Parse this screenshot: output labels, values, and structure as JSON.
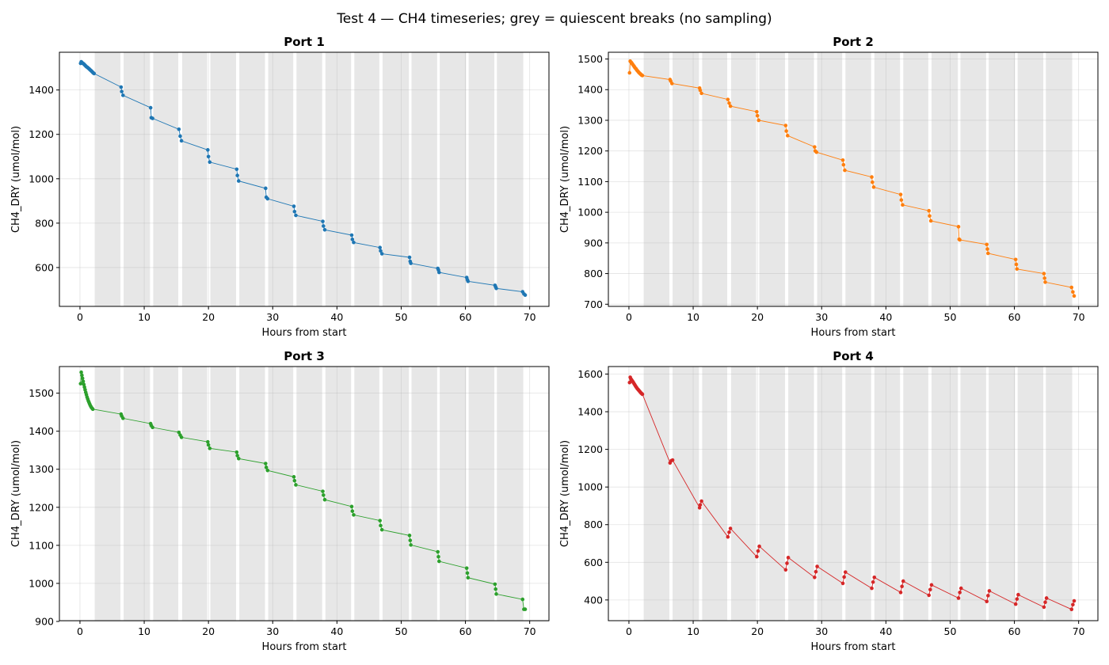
{
  "figure_title": "Test 4 — CH4 timeseries; grey = quiescent breaks (no sampling)",
  "chart_data": [
    {
      "type": "line",
      "title": "Port 1",
      "xlabel": "Hours from start",
      "ylabel": "CH4_DRY (umol/mol)",
      "xlim": [
        -3.2,
        73
      ],
      "ylim": [
        425,
        1570
      ],
      "xticks": [
        0,
        10,
        20,
        30,
        40,
        50,
        60,
        70
      ],
      "yticks": [
        600,
        800,
        1000,
        1200,
        1400
      ],
      "color": "#1f77b4",
      "grid": true,
      "points": [
        [
          0.1,
          1520
        ],
        [
          0.2,
          1527
        ],
        [
          0.3,
          1524
        ],
        [
          0.4,
          1521
        ],
        [
          0.5,
          1519
        ],
        [
          0.6,
          1517
        ],
        [
          0.7,
          1514
        ],
        [
          0.8,
          1511
        ],
        [
          0.9,
          1508
        ],
        [
          1.0,
          1505
        ],
        [
          1.1,
          1503
        ],
        [
          1.2,
          1501
        ],
        [
          1.3,
          1498
        ],
        [
          1.4,
          1496
        ],
        [
          1.5,
          1493
        ],
        [
          1.6,
          1490
        ],
        [
          1.7,
          1488
        ],
        [
          1.8,
          1485
        ],
        [
          1.9,
          1482
        ],
        [
          2.0,
          1479
        ],
        [
          2.1,
          1476
        ],
        [
          2.2,
          1474
        ],
        [
          6.4,
          1413
        ],
        [
          6.5,
          1393
        ],
        [
          6.7,
          1376
        ],
        [
          11.0,
          1320
        ],
        [
          11.1,
          1275
        ],
        [
          11.3,
          1272
        ],
        [
          15.4,
          1223
        ],
        [
          15.6,
          1192
        ],
        [
          15.8,
          1171
        ],
        [
          19.9,
          1130
        ],
        [
          20.0,
          1100
        ],
        [
          20.2,
          1075
        ],
        [
          24.4,
          1043
        ],
        [
          24.5,
          1015
        ],
        [
          24.7,
          990
        ],
        [
          28.9,
          957
        ],
        [
          29.0,
          917
        ],
        [
          29.2,
          910
        ],
        [
          33.3,
          876
        ],
        [
          33.4,
          852
        ],
        [
          33.6,
          835
        ],
        [
          37.8,
          808
        ],
        [
          37.9,
          787
        ],
        [
          38.1,
          770
        ],
        [
          42.3,
          746
        ],
        [
          42.4,
          727
        ],
        [
          42.6,
          713
        ],
        [
          46.7,
          690
        ],
        [
          46.8,
          675
        ],
        [
          47.0,
          662
        ],
        [
          51.3,
          646
        ],
        [
          51.4,
          628
        ],
        [
          51.5,
          619
        ],
        [
          55.7,
          596
        ],
        [
          55.8,
          589
        ],
        [
          55.9,
          578
        ],
        [
          60.2,
          555
        ],
        [
          60.3,
          545
        ],
        [
          60.4,
          538
        ],
        [
          64.6,
          520
        ],
        [
          64.7,
          513
        ],
        [
          64.8,
          506
        ],
        [
          68.9,
          491
        ],
        [
          69.1,
          481
        ],
        [
          69.3,
          476
        ]
      ]
    },
    {
      "type": "line",
      "title": "Port 2",
      "xlabel": "Hours from start",
      "ylabel": "CH4_DRY (umol/mol)",
      "xlim": [
        -3.2,
        73
      ],
      "ylim": [
        693,
        1522
      ],
      "xticks": [
        0,
        10,
        20,
        30,
        40,
        50,
        60,
        70
      ],
      "yticks": [
        700,
        800,
        900,
        1000,
        1100,
        1200,
        1300,
        1400,
        1500
      ],
      "color": "#ff7f0e",
      "grid": true,
      "points": [
        [
          0.1,
          1455
        ],
        [
          0.2,
          1493
        ],
        [
          0.3,
          1490
        ],
        [
          0.4,
          1488
        ],
        [
          0.5,
          1485
        ],
        [
          0.6,
          1482
        ],
        [
          0.7,
          1479
        ],
        [
          0.8,
          1476
        ],
        [
          0.9,
          1473
        ],
        [
          1.0,
          1470
        ],
        [
          1.1,
          1468
        ],
        [
          1.2,
          1465
        ],
        [
          1.3,
          1462
        ],
        [
          1.4,
          1460
        ],
        [
          1.5,
          1457
        ],
        [
          1.6,
          1455
        ],
        [
          1.7,
          1453
        ],
        [
          1.8,
          1451
        ],
        [
          1.9,
          1449
        ],
        [
          2.0,
          1447
        ],
        [
          2.1,
          1446
        ],
        [
          6.4,
          1433
        ],
        [
          6.5,
          1428
        ],
        [
          6.7,
          1420
        ],
        [
          11.0,
          1405
        ],
        [
          11.1,
          1398
        ],
        [
          11.3,
          1388
        ],
        [
          15.4,
          1368
        ],
        [
          15.6,
          1356
        ],
        [
          15.8,
          1346
        ],
        [
          19.9,
          1328
        ],
        [
          20.0,
          1315
        ],
        [
          20.2,
          1300
        ],
        [
          24.4,
          1283
        ],
        [
          24.5,
          1265
        ],
        [
          24.7,
          1250
        ],
        [
          28.9,
          1213
        ],
        [
          29.0,
          1200
        ],
        [
          29.2,
          1196
        ],
        [
          33.3,
          1170
        ],
        [
          33.4,
          1155
        ],
        [
          33.6,
          1137
        ],
        [
          37.8,
          1115
        ],
        [
          37.9,
          1098
        ],
        [
          38.1,
          1082
        ],
        [
          42.3,
          1058
        ],
        [
          42.4,
          1040
        ],
        [
          42.6,
          1024
        ],
        [
          46.7,
          1005
        ],
        [
          46.8,
          988
        ],
        [
          47.0,
          972
        ],
        [
          51.3,
          953
        ],
        [
          51.4,
          912
        ],
        [
          51.5,
          910
        ],
        [
          55.7,
          895
        ],
        [
          55.8,
          880
        ],
        [
          55.9,
          866
        ],
        [
          60.2,
          846
        ],
        [
          60.3,
          830
        ],
        [
          60.4,
          815
        ],
        [
          64.6,
          800
        ],
        [
          64.7,
          785
        ],
        [
          64.8,
          772
        ],
        [
          68.9,
          755
        ],
        [
          69.1,
          740
        ],
        [
          69.3,
          727
        ]
      ]
    },
    {
      "type": "line",
      "title": "Port 3",
      "xlabel": "Hours from start",
      "ylabel": "CH4_DRY (umol/mol)",
      "xlim": [
        -3.2,
        73
      ],
      "ylim": [
        902,
        1570
      ],
      "xticks": [
        0,
        10,
        20,
        30,
        40,
        50,
        60,
        70
      ],
      "yticks": [
        900,
        1000,
        1100,
        1200,
        1300,
        1400,
        1500
      ],
      "color": "#2ca02c",
      "grid": true,
      "points": [
        [
          0.1,
          1525
        ],
        [
          0.2,
          1555
        ],
        [
          0.3,
          1547
        ],
        [
          0.4,
          1539
        ],
        [
          0.5,
          1531
        ],
        [
          0.6,
          1523
        ],
        [
          0.7,
          1516
        ],
        [
          0.8,
          1509
        ],
        [
          0.9,
          1502
        ],
        [
          1.0,
          1496
        ],
        [
          1.1,
          1490
        ],
        [
          1.2,
          1485
        ],
        [
          1.3,
          1480
        ],
        [
          1.4,
          1476
        ],
        [
          1.5,
          1472
        ],
        [
          1.6,
          1468
        ],
        [
          1.7,
          1465
        ],
        [
          1.8,
          1462
        ],
        [
          1.9,
          1460
        ],
        [
          2.0,
          1458
        ],
        [
          6.4,
          1445
        ],
        [
          6.5,
          1440
        ],
        [
          6.7,
          1434
        ],
        [
          11.0,
          1420
        ],
        [
          11.1,
          1415
        ],
        [
          11.3,
          1410
        ],
        [
          15.4,
          1397
        ],
        [
          15.6,
          1390
        ],
        [
          15.8,
          1384
        ],
        [
          19.9,
          1372
        ],
        [
          20.0,
          1364
        ],
        [
          20.2,
          1355
        ],
        [
          24.4,
          1345
        ],
        [
          24.5,
          1336
        ],
        [
          24.7,
          1328
        ],
        [
          28.9,
          1315
        ],
        [
          29.0,
          1305
        ],
        [
          29.2,
          1297
        ],
        [
          33.3,
          1280
        ],
        [
          33.4,
          1270
        ],
        [
          33.6,
          1259
        ],
        [
          37.8,
          1242
        ],
        [
          37.9,
          1232
        ],
        [
          38.1,
          1220
        ],
        [
          42.3,
          1202
        ],
        [
          42.4,
          1190
        ],
        [
          42.6,
          1180
        ],
        [
          46.7,
          1165
        ],
        [
          46.8,
          1152
        ],
        [
          47.0,
          1141
        ],
        [
          51.3,
          1126
        ],
        [
          51.4,
          1113
        ],
        [
          51.5,
          1101
        ],
        [
          55.7,
          1083
        ],
        [
          55.8,
          1070
        ],
        [
          55.9,
          1058
        ],
        [
          60.2,
          1040
        ],
        [
          60.3,
          1027
        ],
        [
          60.4,
          1015
        ],
        [
          64.6,
          998
        ],
        [
          64.7,
          985
        ],
        [
          64.8,
          972
        ],
        [
          68.9,
          958
        ],
        [
          69.1,
          932
        ],
        [
          69.3,
          932
        ]
      ]
    },
    {
      "type": "line",
      "title": "Port 4",
      "xlabel": "Hours from start",
      "ylabel": "CH4_DRY (umol/mol)",
      "xlim": [
        -3.2,
        73
      ],
      "ylim": [
        290,
        1640
      ],
      "xticks": [
        0,
        10,
        20,
        30,
        40,
        50,
        60,
        70
      ],
      "yticks": [
        400,
        600,
        800,
        1000,
        1200,
        1400,
        1600
      ],
      "color": "#d62728",
      "grid": true,
      "points": [
        [
          0.1,
          1555
        ],
        [
          0.2,
          1583
        ],
        [
          0.3,
          1575
        ],
        [
          0.4,
          1570
        ],
        [
          0.5,
          1565
        ],
        [
          0.6,
          1560
        ],
        [
          0.7,
          1555
        ],
        [
          0.8,
          1549
        ],
        [
          0.9,
          1544
        ],
        [
          1.0,
          1538
        ],
        [
          1.1,
          1533
        ],
        [
          1.2,
          1528
        ],
        [
          1.3,
          1523
        ],
        [
          1.4,
          1519
        ],
        [
          1.5,
          1515
        ],
        [
          1.6,
          1511
        ],
        [
          1.7,
          1507
        ],
        [
          1.8,
          1503
        ],
        [
          1.9,
          1499
        ],
        [
          2.0,
          1496
        ],
        [
          2.1,
          1493
        ],
        [
          6.4,
          1128
        ],
        [
          6.6,
          1140
        ],
        [
          6.8,
          1143
        ],
        [
          11.0,
          890
        ],
        [
          11.1,
          905
        ],
        [
          11.3,
          925
        ],
        [
          15.4,
          735
        ],
        [
          15.6,
          760
        ],
        [
          15.8,
          780
        ],
        [
          19.9,
          630
        ],
        [
          20.1,
          660
        ],
        [
          20.3,
          685
        ],
        [
          24.4,
          560
        ],
        [
          24.6,
          595
        ],
        [
          24.8,
          625
        ],
        [
          28.9,
          520
        ],
        [
          29.1,
          550
        ],
        [
          29.3,
          578
        ],
        [
          33.3,
          488
        ],
        [
          33.5,
          522
        ],
        [
          33.7,
          548
        ],
        [
          37.8,
          462
        ],
        [
          38.0,
          495
        ],
        [
          38.2,
          520
        ],
        [
          42.3,
          440
        ],
        [
          42.5,
          472
        ],
        [
          42.7,
          500
        ],
        [
          46.7,
          425
        ],
        [
          46.9,
          455
        ],
        [
          47.1,
          480
        ],
        [
          51.3,
          410
        ],
        [
          51.5,
          440
        ],
        [
          51.7,
          462
        ],
        [
          55.7,
          392
        ],
        [
          55.9,
          423
        ],
        [
          56.1,
          448
        ],
        [
          60.2,
          378
        ],
        [
          60.4,
          405
        ],
        [
          60.6,
          428
        ],
        [
          64.6,
          362
        ],
        [
          64.8,
          388
        ],
        [
          65.0,
          410
        ],
        [
          68.9,
          350
        ],
        [
          69.1,
          375
        ],
        [
          69.3,
          395
        ]
      ]
    }
  ],
  "quiescent_breaks": [
    [
      2.3,
      6.3
    ],
    [
      6.8,
      10.9
    ],
    [
      11.4,
      15.3
    ],
    [
      15.9,
      19.8
    ],
    [
      20.3,
      24.3
    ],
    [
      24.8,
      28.8
    ],
    [
      29.3,
      33.2
    ],
    [
      33.7,
      37.7
    ],
    [
      38.2,
      42.2
    ],
    [
      42.7,
      46.6
    ],
    [
      47.1,
      51.2
    ],
    [
      51.6,
      55.6
    ],
    [
      56.0,
      60.1
    ],
    [
      60.5,
      64.5
    ],
    [
      64.9,
      69.0
    ]
  ]
}
